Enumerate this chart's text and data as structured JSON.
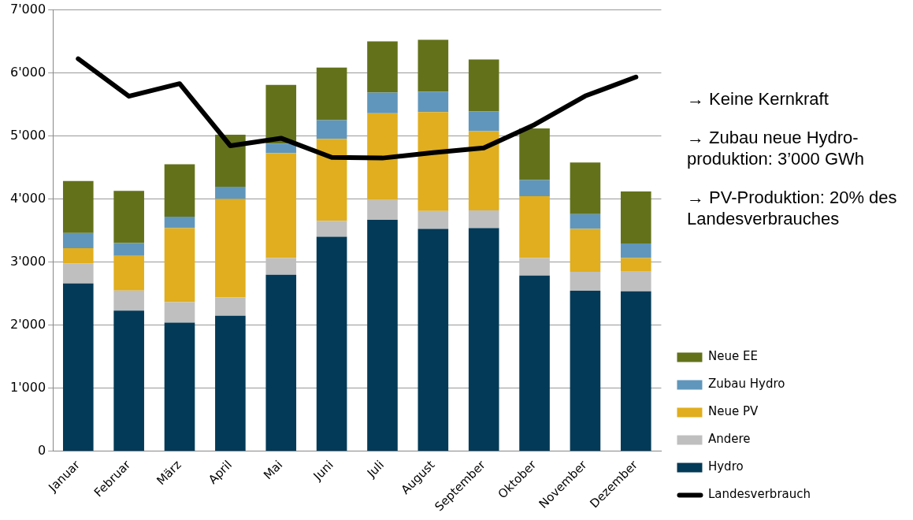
{
  "chart_data": {
    "type": "bar",
    "stacked": true,
    "categories": [
      "Januar",
      "Februar",
      "März",
      "April",
      "Mai",
      "Juni",
      "Juli",
      "August",
      "September",
      "Oktober",
      "November",
      "Dezember"
    ],
    "series": [
      {
        "name": "Hydro",
        "color": "#033a57",
        "values": [
          2660,
          2230,
          2040,
          2150,
          2800,
          3400,
          3670,
          3525,
          3540,
          2785,
          2545,
          2535
        ]
      },
      {
        "name": "Andere",
        "color": "#bfbfbf",
        "values": [
          320,
          320,
          325,
          290,
          265,
          255,
          315,
          285,
          280,
          280,
          300,
          315
        ]
      },
      {
        "name": "Neue PV",
        "color": "#e0ae1e",
        "values": [
          240,
          550,
          1175,
          1560,
          1665,
          1300,
          1375,
          1570,
          1255,
          980,
          680,
          215
        ]
      },
      {
        "name": "Zubau Hydro",
        "color": "#6096bb",
        "values": [
          240,
          200,
          180,
          195,
          150,
          295,
          330,
          320,
          315,
          255,
          235,
          230
        ]
      },
      {
        "name": "Neue EE",
        "color": "#63721a",
        "values": [
          825,
          830,
          830,
          825,
          930,
          835,
          810,
          825,
          825,
          820,
          820,
          825
        ]
      },
      {
        "name": "Landesverbrauch",
        "type": "line",
        "color": "#000000",
        "values": [
          6225,
          5630,
          5830,
          4845,
          4965,
          4660,
          4650,
          4735,
          4810,
          5180,
          5635,
          5935
        ]
      }
    ],
    "ylim": [
      0,
      7000
    ],
    "yticks": [
      0,
      {
        "value": 1000,
        "label": "1'000"
      },
      {
        "value": 2000,
        "label": "2'000"
      },
      {
        "value": 3000,
        "label": "3'000"
      },
      {
        "value": 4000,
        "label": "4'000"
      },
      {
        "value": 5000,
        "label": "5'000"
      },
      {
        "value": 6000,
        "label": "6'000"
      },
      {
        "value": 7000,
        "label": "7'000"
      }
    ],
    "grid": "y",
    "legend": "right",
    "marker": "none",
    "line_style": "solid",
    "annotations": [
      "→ Keine Kernkraft",
      "→ Zubau neue Hydro-produktion: 3’000 GWh",
      "→ PV-Produktion: 20% des Landesverbrauches"
    ]
  }
}
